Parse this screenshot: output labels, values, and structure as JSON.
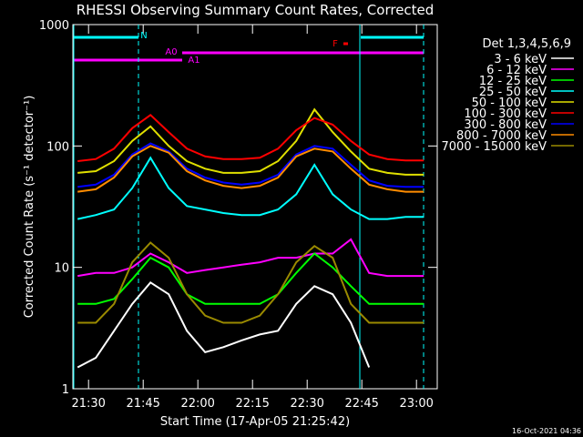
{
  "chart_data": {
    "type": "line",
    "title": "RHESSI Observing Summary Count Rates, Corrected",
    "x_label": "Start Time (17-Apr-05 21:25:42)",
    "y_label": "Corrected Count Rate (s⁻¹ detector⁻¹)",
    "legend_title": "Det 1,3,4,5,6,9",
    "legend": "right",
    "timestamp": "16-Oct-2021 04:36",
    "log_y": true,
    "xlim": [
      "21:25:42",
      "23:05:42"
    ],
    "xticks": [
      "21:30",
      "21:45",
      "22:00",
      "22:15",
      "22:30",
      "22:45",
      "23:00"
    ],
    "ylim": [
      1,
      1000
    ],
    "yticks": [
      1,
      10,
      100,
      1000
    ],
    "annotations": [
      {
        "text": "N",
        "color": "#00ffff"
      },
      {
        "text": "A0",
        "color": "#ff00ff"
      },
      {
        "text": "A1",
        "color": "#ff00ff"
      },
      {
        "text": "F",
        "color": "#ff0000"
      }
    ],
    "x": [
      "21:27",
      "21:32",
      "21:37",
      "21:42",
      "21:47",
      "21:52",
      "21:57",
      "22:02",
      "22:07",
      "22:12",
      "22:17",
      "22:22",
      "22:27",
      "22:32",
      "22:37",
      "22:42",
      "22:47",
      "22:52",
      "22:57",
      "23:02"
    ],
    "series": [
      {
        "name": "3 - 6 keV",
        "color": "#ffffff",
        "values": [
          1.5,
          1.8,
          3,
          5,
          7.5,
          6,
          3,
          2,
          2.2,
          2.5,
          2.8,
          3,
          5,
          7,
          6,
          3.5,
          1.5,
          null,
          null,
          null
        ]
      },
      {
        "name": "6 - 12 keV",
        "color": "#ff00ff",
        "values": [
          8.5,
          9,
          9,
          10,
          13,
          11,
          9,
          9.5,
          10,
          10.5,
          11,
          12,
          12,
          13,
          13,
          17,
          9,
          8.5,
          8.5,
          8.5
        ]
      },
      {
        "name": "12 - 25 keV",
        "color": "#00ff00",
        "values": [
          5,
          5,
          5.5,
          8,
          12,
          10,
          6,
          5,
          5,
          5,
          5,
          6,
          9,
          13,
          10,
          7,
          5,
          5,
          5,
          5
        ]
      },
      {
        "name": "25 - 50 keV",
        "color": "#00ffff",
        "values": [
          25,
          27,
          30,
          45,
          80,
          45,
          32,
          30,
          28,
          27,
          27,
          30,
          40,
          70,
          40,
          30,
          25,
          25,
          26,
          26
        ]
      },
      {
        "name": "50 - 100 keV",
        "color": "#e0e000",
        "values": [
          60,
          62,
          75,
          110,
          145,
          100,
          75,
          65,
          60,
          60,
          62,
          75,
          110,
          200,
          130,
          90,
          65,
          60,
          58,
          58
        ]
      },
      {
        "name": "100 - 300 keV",
        "color": "#ff0000",
        "values": [
          75,
          78,
          95,
          140,
          180,
          130,
          95,
          82,
          78,
          78,
          80,
          95,
          135,
          170,
          150,
          110,
          85,
          78,
          76,
          76
        ]
      },
      {
        "name": "300 - 800 keV",
        "color": "#0000ff",
        "values": [
          46,
          48,
          58,
          85,
          105,
          90,
          65,
          55,
          50,
          48,
          50,
          58,
          85,
          100,
          95,
          70,
          52,
          47,
          46,
          46
        ]
      },
      {
        "name": "800 - 7000 keV",
        "color": "#ff8c00",
        "values": [
          42,
          44,
          55,
          82,
          100,
          88,
          62,
          52,
          47,
          45,
          47,
          55,
          82,
          95,
          90,
          65,
          48,
          44,
          42,
          42
        ]
      },
      {
        "name": "7000 - 15000 keV",
        "color": "#9a8a00",
        "values": [
          3.5,
          3.5,
          5,
          11,
          16,
          12,
          6,
          4,
          3.5,
          3.5,
          4,
          6,
          11,
          15,
          12,
          5,
          3.5,
          3.5,
          3.5,
          3.5
        ]
      }
    ]
  }
}
